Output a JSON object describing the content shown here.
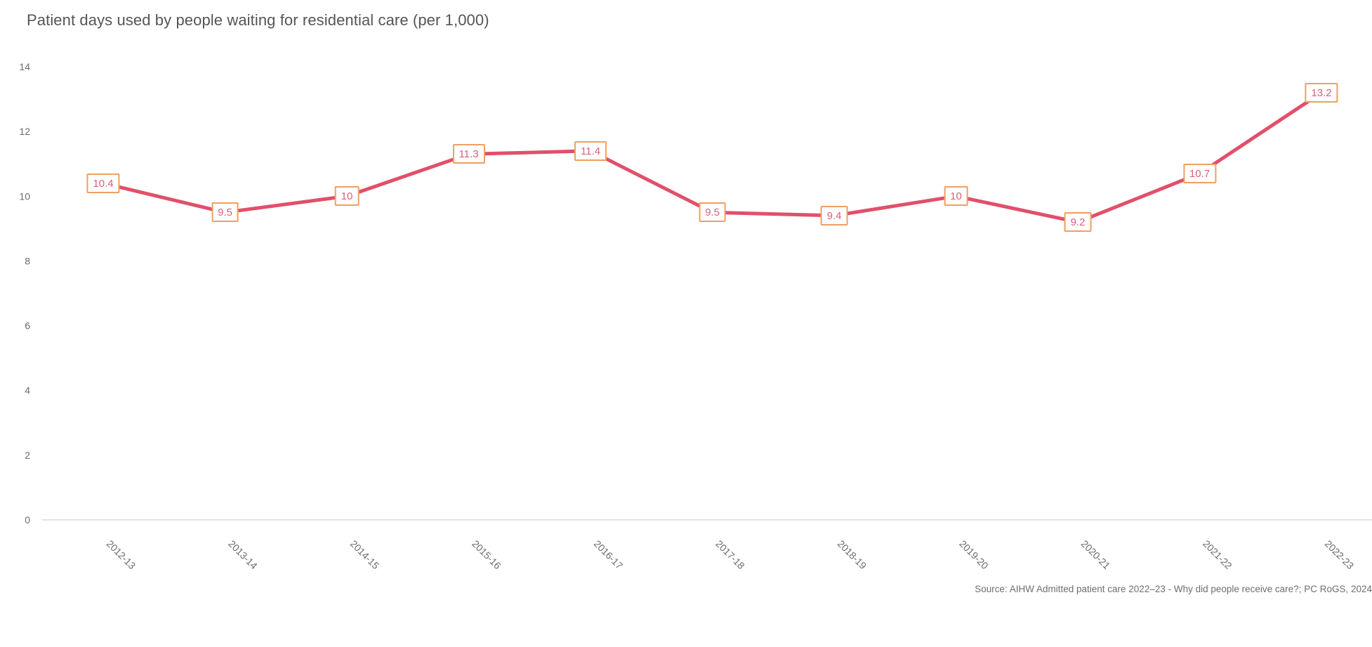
{
  "header": {
    "title": "Patient days used by people waiting for residential care (per 1,000)"
  },
  "footer": {
    "source": "Source: AIHW Admitted patient care 2022–23 - Why did people receive care?; PC RoGS, 2024"
  },
  "chart_data": {
    "type": "line",
    "title": "Patient days used by people waiting for residential care (per 1,000)",
    "categories": [
      "2012-13",
      "2013-14",
      "2014-15",
      "2015-16",
      "2016-17",
      "2017-18",
      "2018-19",
      "2019-20",
      "2020-21",
      "2021-22",
      "2022-23"
    ],
    "values": [
      10.4,
      9.5,
      10,
      11.3,
      11.4,
      9.5,
      9.4,
      10,
      9.2,
      10.7,
      13.2
    ],
    "data_labels": [
      "10.4",
      "9.5",
      "10",
      "11.3",
      "11.4",
      "9.5",
      "9.4",
      "10",
      "9.2",
      "10.7",
      "13.2"
    ],
    "xlabel": "",
    "ylabel": "",
    "ylim": [
      0,
      14
    ],
    "yticks": [
      0,
      2,
      4,
      6,
      8,
      10,
      12,
      14
    ],
    "grid": false,
    "legend_position": "none",
    "colors": {
      "line": "#e0506a",
      "label_text": "#dc5e78",
      "label_border": "#ef9f63",
      "label_background": "#ffffff",
      "axis_line": "#d9d9d9",
      "tick_text": "#6b6b6b",
      "title_text": "#555555",
      "source_text": "#6e6e6e"
    }
  }
}
